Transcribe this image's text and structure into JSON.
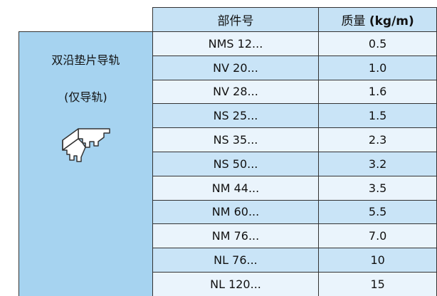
{
  "table": {
    "header": [
      "部件号",
      {
        "text": "质量",
        "unit": "(kg/m)"
      }
    ],
    "side": {
      "title": "双沿垫片导轨",
      "subtitle": "(仅导轨)"
    },
    "rows": [
      [
        "NMS 12...",
        "0.5"
      ],
      [
        "NV 20...",
        "1.0"
      ],
      [
        "NV 28...",
        "1.6"
      ],
      [
        "NS 25...",
        "1.5"
      ],
      [
        "NS 35...",
        "2.3"
      ],
      [
        "NS 50...",
        "3.2"
      ],
      [
        "NM 44...",
        "3.5"
      ],
      [
        "NM 60...",
        "5.5"
      ],
      [
        "NM 76...",
        "7.0"
      ],
      [
        "NL 76...",
        "10"
      ],
      [
        "NL 120...",
        "15"
      ]
    ]
  }
}
